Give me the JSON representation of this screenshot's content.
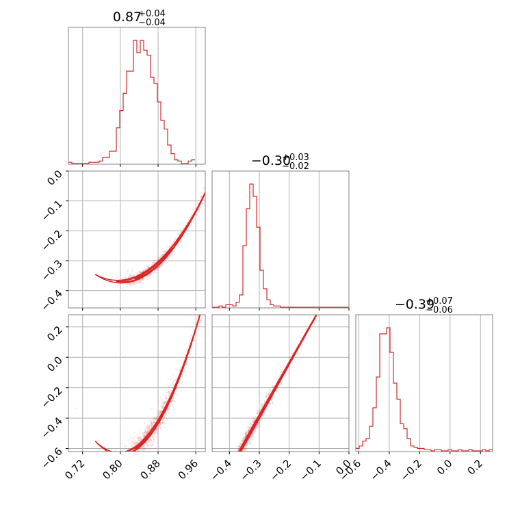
{
  "colors": {
    "series": "#d62728",
    "grid": "#b0b0b0",
    "frame": "#808080",
    "background": "#ffffff"
  },
  "chart_data": {
    "type": "corner",
    "grid": true,
    "params": [
      {
        "title_main": "0.87",
        "title_plus": "+0.04",
        "title_minus": "−0.04",
        "median": 0.87,
        "err_plus": 0.04,
        "err_minus": 0.04,
        "range": [
          0.69,
          0.98
        ],
        "ticks": [
          0.72,
          0.8,
          0.88,
          0.96
        ],
        "tick_labels": [
          "0.72",
          "0.80",
          "0.88",
          "0.96"
        ]
      },
      {
        "title_main": "−0.30",
        "title_plus": "+0.03",
        "title_minus": "−0.02",
        "median": -0.3,
        "err_plus": 0.03,
        "err_minus": 0.02,
        "range": [
          -0.458,
          0.0
        ],
        "ticks": [
          -0.4,
          -0.3,
          -0.2,
          -0.1,
          0.0
        ],
        "tick_labels": [
          "−0.4",
          "−0.3",
          "−0.2",
          "−0.1",
          "0.0"
        ]
      },
      {
        "title_main": "−0.39",
        "title_plus": "+0.07",
        "title_minus": "−0.06",
        "median": -0.39,
        "err_plus": 0.07,
        "err_minus": 0.06,
        "range": [
          -0.62,
          0.28
        ],
        "ticks": [
          -0.6,
          -0.4,
          -0.2,
          0.0,
          0.2
        ],
        "tick_labels": [
          "−0.6",
          "−0.4",
          "−0.2",
          "0.0",
          "0.2"
        ]
      }
    ],
    "y_ticks": {
      "row1": {
        "ticks": [
          0.0,
          -0.1,
          -0.2,
          -0.3,
          -0.4
        ],
        "tick_labels": [
          "0.0",
          "−0.1",
          "−0.2",
          "−0.3",
          "−0.4"
        ]
      },
      "row2": {
        "ticks": [
          0.2,
          0.0,
          -0.2,
          -0.4,
          -0.6
        ],
        "tick_labels": [
          "0.2",
          "0.0",
          "−0.2",
          "−0.4",
          "−0.6"
        ]
      }
    },
    "hist": [
      {
        "bin_start": 0.69,
        "bin_width": 0.00725,
        "counts": [
          1,
          0,
          0,
          0,
          0,
          0,
          1,
          1,
          1,
          2,
          5,
          5,
          10,
          10,
          29,
          43,
          57,
          75,
          75,
          100,
          90,
          100,
          92,
          88,
          70,
          65,
          50,
          35,
          28,
          15,
          8,
          3,
          2,
          0,
          0,
          2,
          3
        ]
      },
      {
        "bin_start": -0.458,
        "bin_width": 0.01145,
        "counts": [
          0,
          0,
          1,
          0,
          2,
          2,
          1,
          4,
          10,
          50,
          80,
          100,
          90,
          65,
          30,
          15,
          6,
          2,
          1,
          1,
          0,
          0,
          0,
          0,
          0,
          0,
          0,
          0,
          0,
          0,
          0,
          0,
          0,
          0,
          0,
          0,
          0,
          0,
          0,
          0
        ]
      },
      {
        "bin_start": -0.62,
        "bin_width": 0.0225,
        "counts": [
          2,
          4,
          8,
          10,
          20,
          35,
          60,
          95,
          95,
          100,
          80,
          55,
          42,
          22,
          18,
          10,
          4,
          3,
          2,
          2,
          1,
          1,
          0,
          1,
          1,
          0,
          0,
          1,
          0,
          0,
          1,
          0,
          0,
          1,
          0,
          0,
          0,
          1,
          0,
          1
        ]
      }
    ],
    "relation": {
      "description": "strongly correlated: param2 = -0.33 + 1.2*(param1-0.865) + 9*(param1-0.865)^2; param3 = -0.39 + 3.5*(param2+0.30)",
      "p1_center": 0.865,
      "p2_center": -0.33,
      "p2_linear": 1.2,
      "p2_quad": 9.0,
      "p3_center": -0.39,
      "p3_slope": 3.5
    }
  }
}
